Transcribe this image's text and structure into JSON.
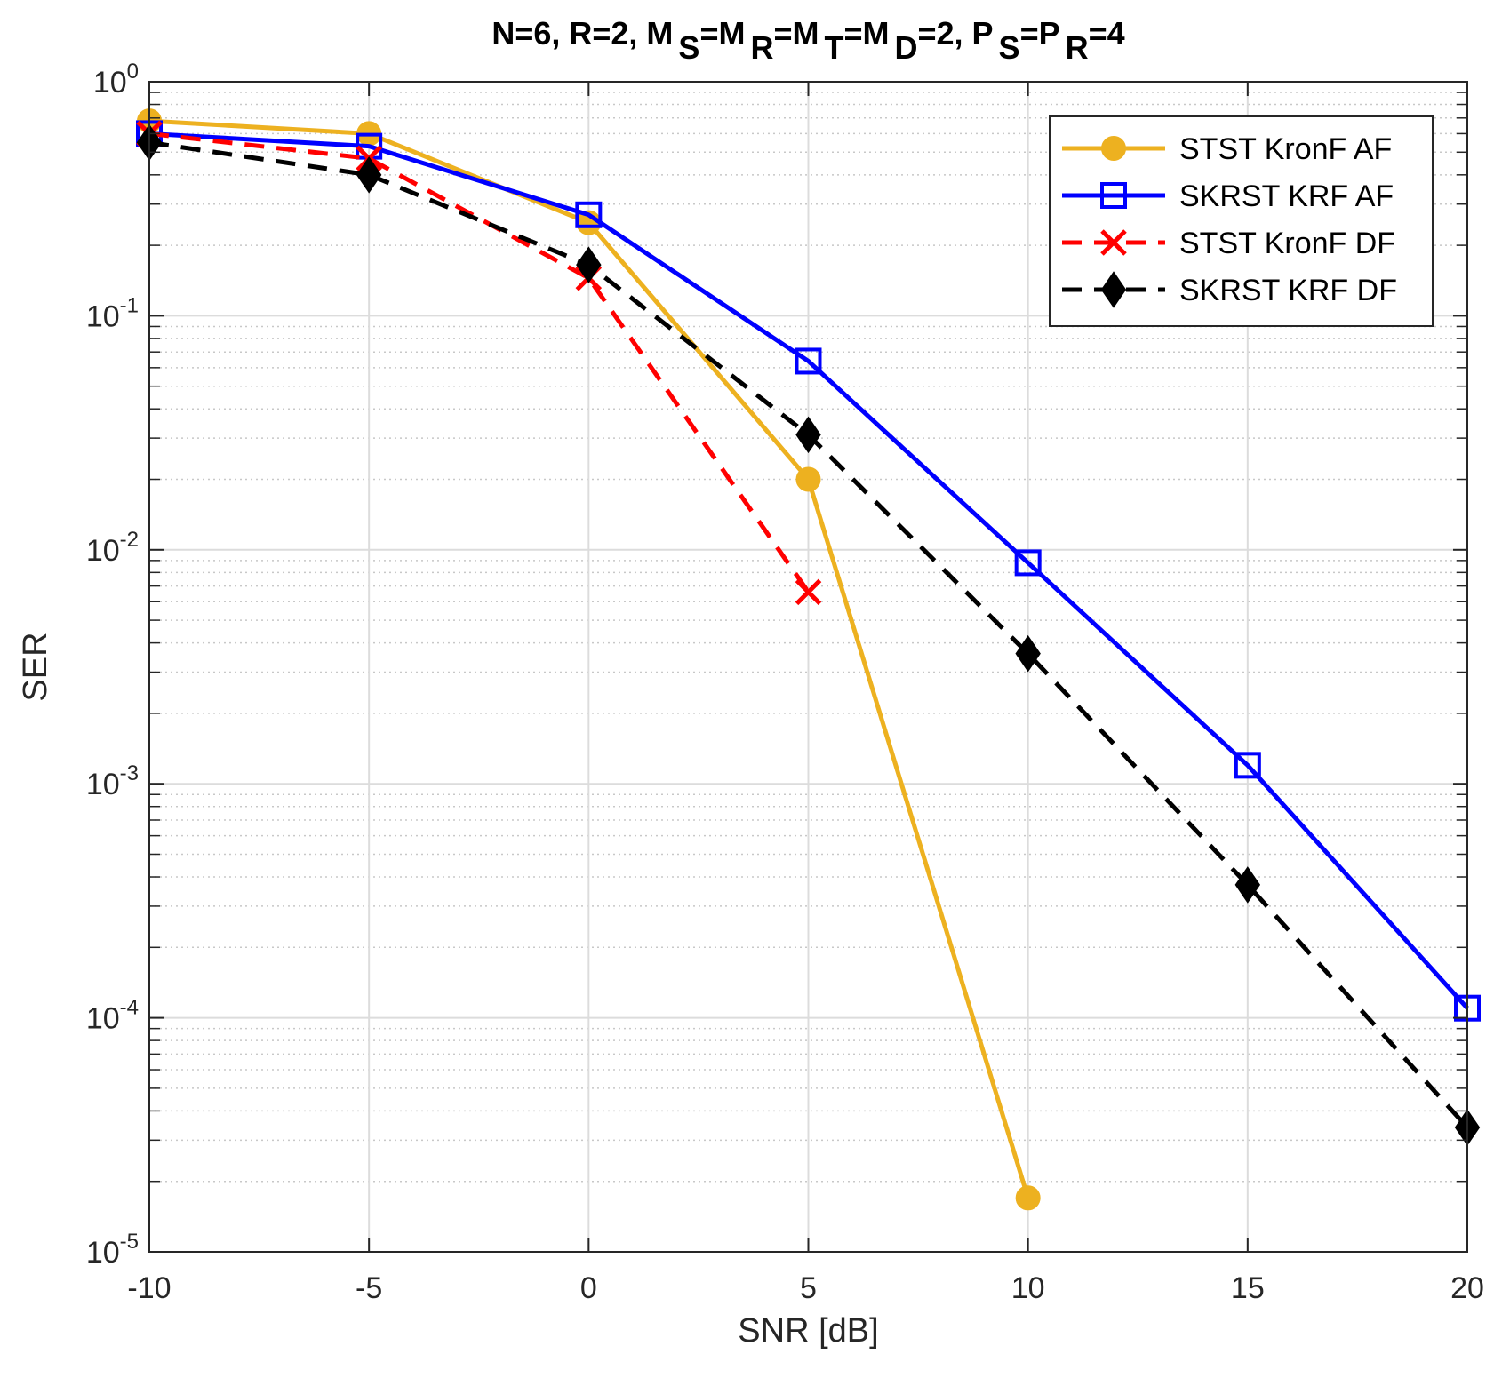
{
  "chart_data": {
    "type": "line",
    "title": {
      "segments": [
        {
          "text": "N=6,  R=2,  M",
          "sub": false
        },
        {
          "text": "S",
          "sub": true
        },
        {
          "text": "=M",
          "sub": false
        },
        {
          "text": "R",
          "sub": true
        },
        {
          "text": "=M",
          "sub": false
        },
        {
          "text": "T",
          "sub": true
        },
        {
          "text": "=M",
          "sub": false
        },
        {
          "text": "D",
          "sub": true
        },
        {
          "text": "=2,  P",
          "sub": false
        },
        {
          "text": "S",
          "sub": true
        },
        {
          "text": "=P",
          "sub": false
        },
        {
          "text": "R",
          "sub": true
        },
        {
          "text": "=4",
          "sub": false
        }
      ]
    },
    "xlabel": "SNR [dB]",
    "ylabel": "SER",
    "xscale": "linear",
    "yscale": "log",
    "xlim": [
      -10,
      20
    ],
    "ylim": [
      1e-05,
      1
    ],
    "xticks": [
      -10,
      -5,
      0,
      5,
      10,
      15,
      20
    ],
    "xtick_labels": [
      "-10",
      "-5",
      "0",
      "5",
      "10",
      "15",
      "20"
    ],
    "yticks": [
      {
        "value": 1,
        "base": "10",
        "exp": "0"
      },
      {
        "value": 0.1,
        "base": "10",
        "exp": "-1"
      },
      {
        "value": 0.01,
        "base": "10",
        "exp": "-2"
      },
      {
        "value": 0.001,
        "base": "10",
        "exp": "-3"
      },
      {
        "value": 0.0001,
        "base": "10",
        "exp": "-4"
      },
      {
        "value": 1e-05,
        "base": "10",
        "exp": "-5"
      }
    ],
    "grid": true,
    "minor_grid": true,
    "legend_position": "top-right",
    "series": [
      {
        "name": "STST KronF AF",
        "color": "#EDB120",
        "line_style": "solid",
        "marker": "circle",
        "x": [
          -10,
          -5,
          0,
          5,
          10
        ],
        "y": [
          0.68,
          0.6,
          0.25,
          0.02,
          1.7e-05
        ]
      },
      {
        "name": "SKRST KRF AF",
        "color": "#0000FF",
        "line_style": "solid",
        "marker": "square",
        "x": [
          -10,
          -5,
          0,
          5,
          10,
          15,
          20
        ],
        "y": [
          0.6,
          0.53,
          0.27,
          0.064,
          0.0088,
          0.0012,
          0.00011
        ]
      },
      {
        "name": "STST KronF DF",
        "color": "#FF0000",
        "line_style": "dashed",
        "marker": "x",
        "x": [
          -10,
          -5,
          0,
          5
        ],
        "y": [
          0.6,
          0.47,
          0.145,
          0.0066
        ]
      },
      {
        "name": "SKRST KRF DF",
        "color": "#000000",
        "line_style": "dashed",
        "marker": "diamond",
        "x": [
          -10,
          -5,
          0,
          5,
          10,
          15,
          20
        ],
        "y": [
          0.55,
          0.4,
          0.165,
          0.031,
          0.0036,
          0.00037,
          3.4e-05
        ]
      }
    ]
  }
}
